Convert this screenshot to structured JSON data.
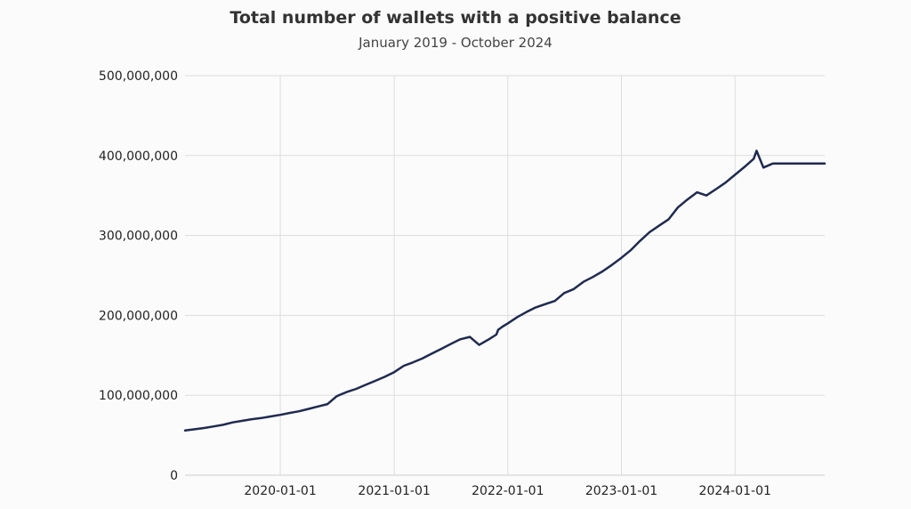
{
  "chart_data": {
    "type": "line",
    "title": "Total number of wallets with a positive balance",
    "subtitle": "January 2019 - October 2024",
    "xlabel": "",
    "ylabel": "",
    "xlim": [
      "2019-03-01",
      "2024-10-15"
    ],
    "ylim": [
      0,
      500000000
    ],
    "grid": true,
    "y_ticks": [
      0,
      100000000,
      200000000,
      300000000,
      400000000,
      500000000
    ],
    "y_tick_labels": [
      "0",
      "100,000,000",
      "200,000,000",
      "300,000,000",
      "400,000,000",
      "500,000,000"
    ],
    "x_ticks": [
      "2020-01-01",
      "2021-01-01",
      "2022-01-01",
      "2023-01-01",
      "2024-01-01"
    ],
    "x_tick_labels": [
      "2020-01-01",
      "2021-01-01",
      "2022-01-01",
      "2023-01-01",
      "2024-01-01"
    ],
    "colors": {
      "line": "#1f2a4f",
      "grid": "#dddddd",
      "background": "#fbfbfb"
    },
    "series": [
      {
        "x": [
          "2019-03-01",
          "2019-04-01",
          "2019-05-01",
          "2019-06-01",
          "2019-07-01",
          "2019-08-01",
          "2019-09-01",
          "2019-10-01",
          "2019-11-01",
          "2019-12-01",
          "2020-01-01",
          "2020-02-01",
          "2020-03-01",
          "2020-04-01",
          "2020-05-01",
          "2020-06-01",
          "2020-07-01",
          "2020-08-01",
          "2020-09-01",
          "2020-10-01",
          "2020-11-01",
          "2020-12-01",
          "2021-01-01",
          "2021-02-01",
          "2021-03-01",
          "2021-04-01",
          "2021-05-01",
          "2021-06-01",
          "2021-07-01",
          "2021-08-01",
          "2021-09-01",
          "2021-10-01",
          "2021-11-01",
          "2021-11-25",
          "2021-12-01",
          "2021-12-15",
          "2022-01-01",
          "2022-02-01",
          "2022-03-01",
          "2022-04-01",
          "2022-05-01",
          "2022-06-01",
          "2022-07-01",
          "2022-08-01",
          "2022-09-01",
          "2022-10-01",
          "2022-11-01",
          "2022-12-01",
          "2023-01-01",
          "2023-02-01",
          "2023-03-01",
          "2023-04-01",
          "2023-05-01",
          "2023-06-01",
          "2023-07-01",
          "2023-08-01",
          "2023-09-01",
          "2023-10-01",
          "2023-11-01",
          "2023-12-01",
          "2024-01-01",
          "2024-02-01",
          "2024-03-01",
          "2024-03-10",
          "2024-04-01",
          "2024-05-01",
          "2024-06-01",
          "2024-07-01",
          "2024-08-01",
          "2024-09-01",
          "2024-09-25",
          "2024-10-01",
          "2024-10-15"
        ],
        "values": [
          56000000,
          57500000,
          59000000,
          61000000,
          63000000,
          66000000,
          68000000,
          70000000,
          71500000,
          73500000,
          75500000,
          78000000,
          80000000,
          83000000,
          86000000,
          89000000,
          99000000,
          104000000,
          108000000,
          113000000,
          118000000,
          123000000,
          129000000,
          137000000,
          141000000,
          146000000,
          152000000,
          158000000,
          164000000,
          170000000,
          173000000,
          163000000,
          170000000,
          176000000,
          182000000,
          186000000,
          190000000,
          198000000,
          204000000,
          210000000,
          214000000,
          218000000,
          228000000,
          233000000,
          242000000,
          248000000,
          255000000,
          263000000,
          272000000,
          282000000,
          293000000,
          304000000,
          312000000,
          320000000,
          335000000,
          345000000,
          354000000,
          350000000,
          358000000,
          366000000,
          376000000,
          386000000,
          396000000,
          406000000,
          385000000,
          390000000,
          390000000,
          390000000,
          390000000,
          390000000,
          390000000,
          390000000,
          390000000
        ]
      }
    ]
  }
}
